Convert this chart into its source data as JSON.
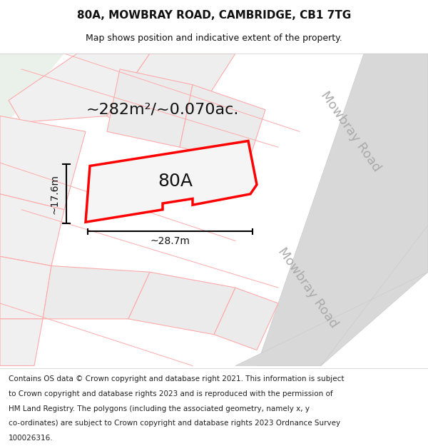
{
  "title": "80A, MOWBRAY ROAD, CAMBRIDGE, CB1 7TG",
  "subtitle": "Map shows position and indicative extent of the property.",
  "area_text": "~282m²/~0.070ac.",
  "label_80A": "80A",
  "dim_width": "~28.7m",
  "dim_height": "~17.6m",
  "road_label": "Mowbray Road",
  "footer_lines": [
    "Contains OS data © Crown copyright and database right 2021. This information is subject",
    "to Crown copyright and database rights 2023 and is reproduced with the permission of",
    "HM Land Registry. The polygons (including the associated geometry, namely x, y",
    "co-ordinates) are subject to Crown copyright and database rights 2023 Ordnance Survey",
    "100026316."
  ],
  "map_bg": "#ffffff",
  "footer_bg": "#ffffff",
  "light_red": "#ffaaaa",
  "road_color": "#d8d8d8",
  "title_fontsize": 11,
  "subtitle_fontsize": 9,
  "area_fontsize": 16,
  "label_fontsize": 18,
  "dim_fontsize": 10,
  "road_fontsize": 13,
  "footer_fontsize": 7.5
}
